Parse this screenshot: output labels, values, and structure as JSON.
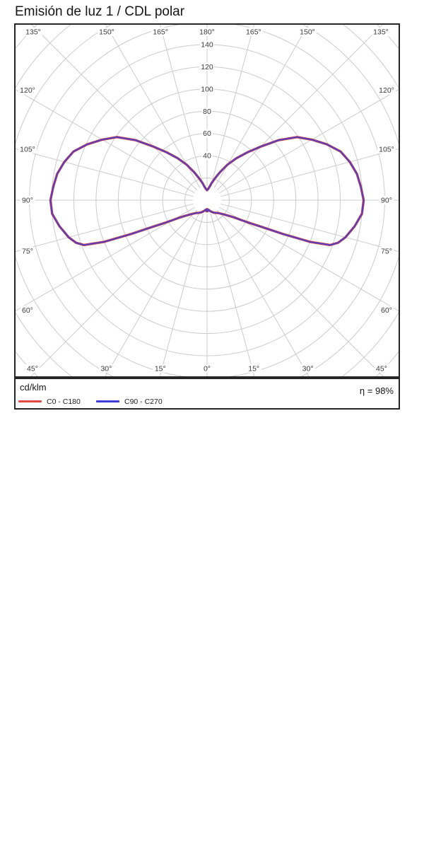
{
  "page": {
    "title": "Emisión de luz 1 / CDL polar"
  },
  "chart_data": {
    "type": "line",
    "subtype": "polar-photometric-cdl",
    "title": "Emisión de luz 1 / CDL polar",
    "units": "cd/klm",
    "efficiency": "η = 98%",
    "grid": true,
    "grid_color": "#cbcbcb",
    "border_color": "#262626",
    "angle_tick_step_deg": 15,
    "angle_tick_labels": [
      "0°",
      "15°",
      "30°",
      "45°",
      "60°",
      "75°",
      "90°",
      "105°",
      "120°",
      "135°",
      "150°",
      "165°",
      "180°"
    ],
    "angle_layout_note": "0° at bottom, 180° at top, labels mirrored left and right",
    "radial_tick_labels": [
      "40",
      "60",
      "80",
      "100",
      "120",
      "140"
    ],
    "radial_ticks": [
      40,
      60,
      80,
      100,
      120,
      140
    ],
    "ring_step": 20,
    "r_axis_max_labeled": 140,
    "legend_position": "bottom",
    "series": [
      {
        "name": "C0 - C180",
        "color": "#e04a40",
        "symmetric": true,
        "gamma_deg": [
          0,
          3,
          6,
          10,
          15,
          20,
          25,
          30,
          35,
          40,
          45,
          50,
          55,
          58,
          60,
          62,
          64,
          66,
          68,
          70,
          72,
          75,
          80,
          85,
          90,
          95,
          100,
          105,
          110,
          115,
          120,
          125,
          130,
          135,
          140,
          145,
          150,
          155,
          160,
          165,
          170,
          175,
          180
        ],
        "values": [
          8,
          10,
          8.5,
          9,
          10,
          11,
          12,
          13,
          14,
          15,
          17,
          20,
          25,
          30,
          36,
          44,
          55,
          75,
          100,
          118,
          124,
          129,
          135,
          140,
          141,
          139,
          137,
          133,
          128,
          119,
          109,
          99,
          84,
          68,
          56,
          46,
          37,
          28,
          21,
          16,
          12,
          10,
          9
        ]
      },
      {
        "name": "C90 - C270",
        "color": "#3c3cd2",
        "symmetric": true,
        "gamma_deg": [
          0,
          3,
          6,
          10,
          15,
          20,
          25,
          30,
          35,
          40,
          45,
          50,
          55,
          58,
          60,
          62,
          64,
          66,
          68,
          70,
          72,
          75,
          80,
          85,
          90,
          95,
          100,
          105,
          110,
          115,
          120,
          125,
          130,
          135,
          140,
          145,
          150,
          155,
          160,
          165,
          170,
          175,
          180
        ],
        "values": [
          8,
          10,
          8.5,
          9,
          10,
          11,
          12,
          13,
          14,
          15,
          17,
          20,
          25,
          30,
          36,
          44,
          55,
          75,
          100,
          118,
          124,
          129,
          135,
          140,
          141,
          139,
          137,
          133,
          128,
          119,
          109,
          99,
          84,
          68,
          56,
          46,
          37,
          28,
          21,
          16,
          12,
          10,
          9
        ]
      }
    ]
  }
}
